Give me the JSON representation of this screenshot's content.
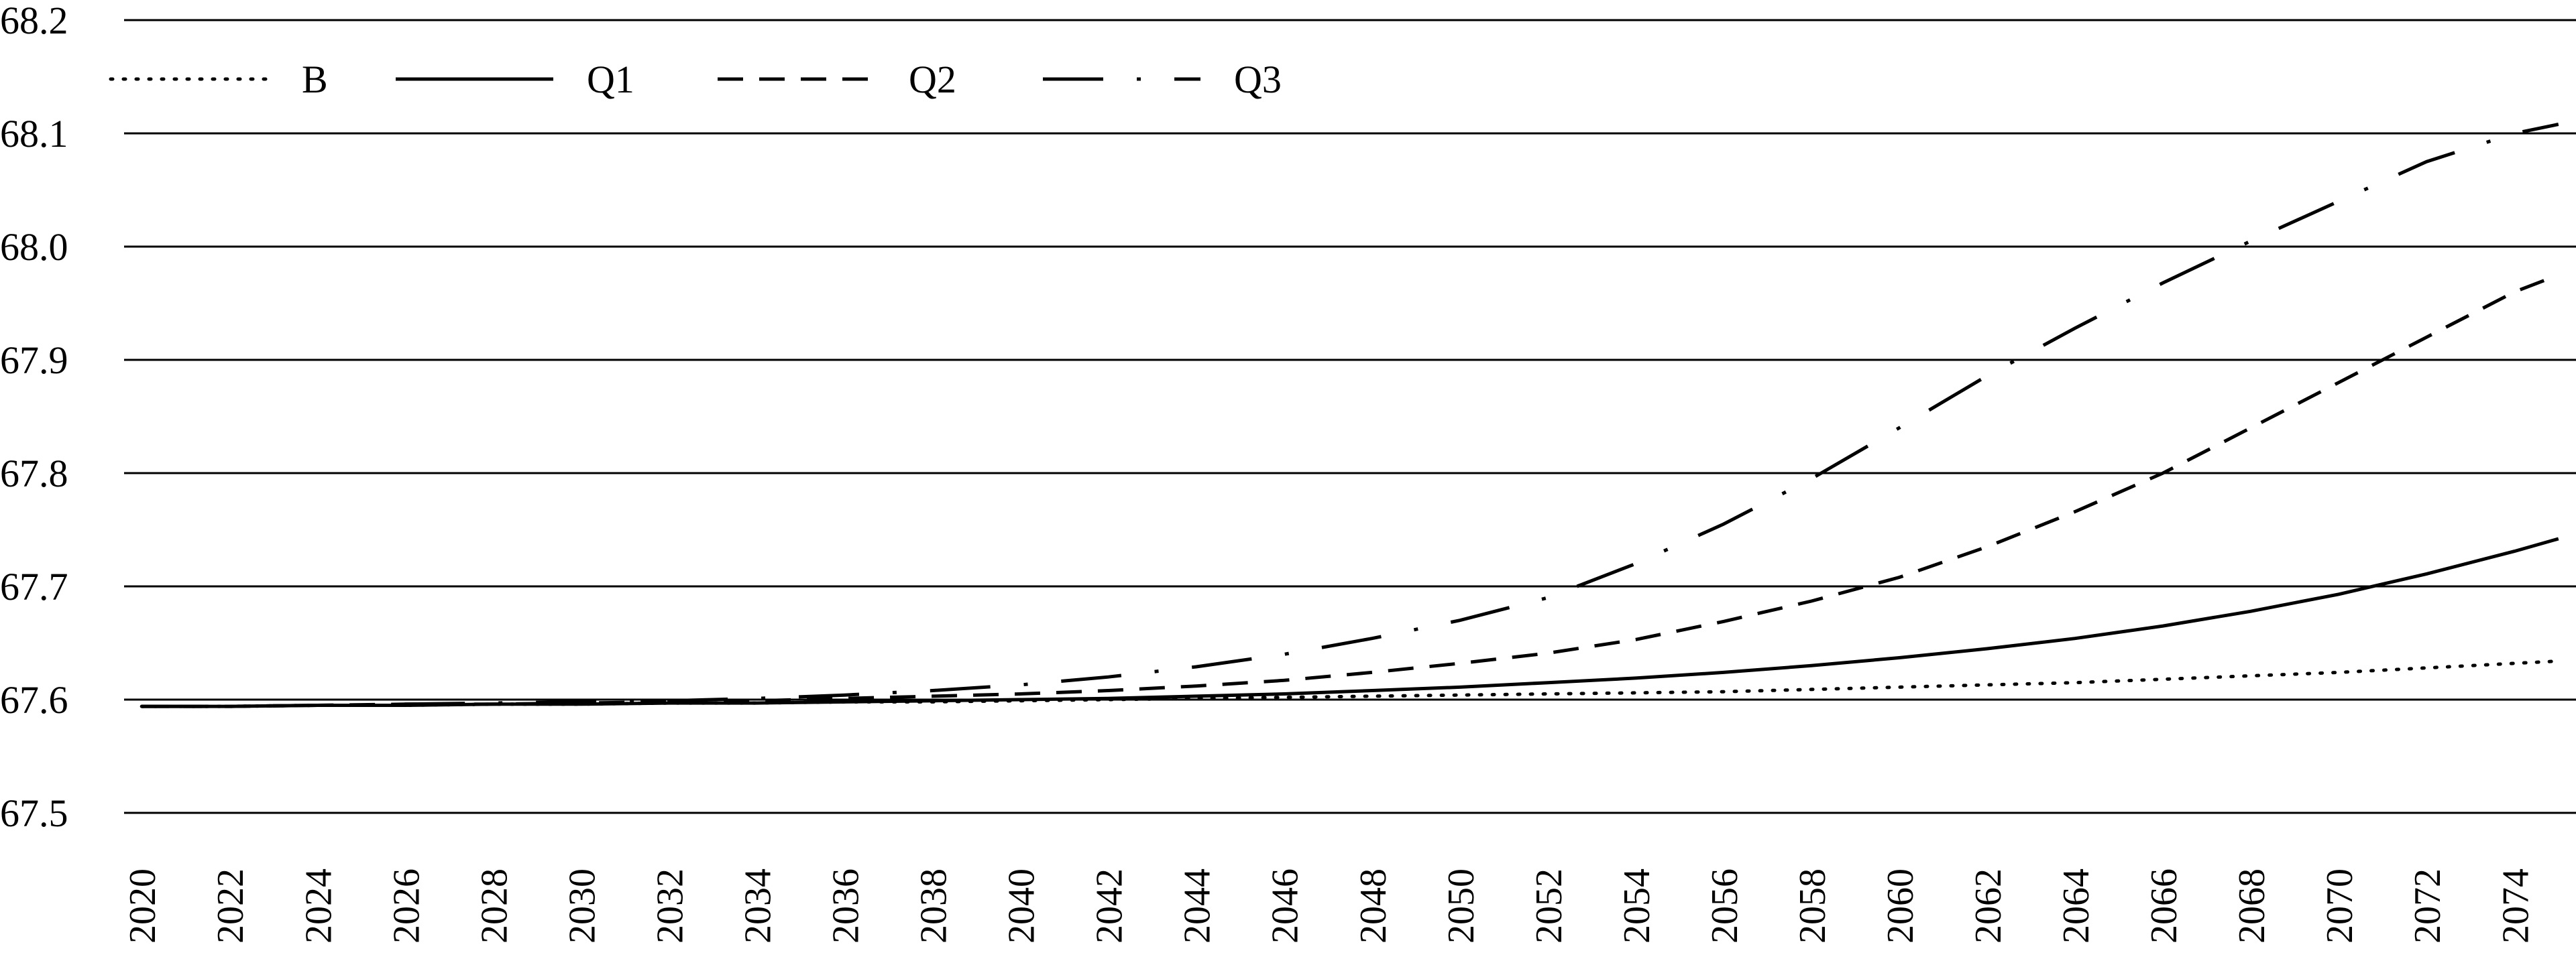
{
  "chart_data": {
    "type": "line",
    "title": "",
    "xlabel": "",
    "ylabel": "",
    "ylim": [
      67.5,
      68.2
    ],
    "yticks": [
      "67.5",
      "67.6",
      "67.7",
      "67.8",
      "67.9",
      "68.0",
      "68.1",
      "68.2"
    ],
    "xtick_labels": [
      "2020",
      "2022",
      "2024",
      "2026",
      "2028",
      "2030",
      "2032",
      "2034",
      "2036",
      "2038",
      "2040",
      "2042",
      "2044",
      "2046",
      "2048",
      "2050",
      "2052",
      "2054",
      "2056",
      "2058",
      "2060",
      "2062",
      "2064",
      "2066",
      "2068",
      "2070",
      "2072",
      "2074"
    ],
    "grid": "horizontal",
    "legend_position": "top-left",
    "x": [
      2020,
      2022,
      2024,
      2026,
      2028,
      2030,
      2032,
      2034,
      2036,
      2038,
      2040,
      2042,
      2044,
      2046,
      2048,
      2050,
      2052,
      2054,
      2056,
      2058,
      2060,
      2062,
      2064,
      2066,
      2068,
      2070,
      2072,
      2074,
      2075
    ],
    "series": [
      {
        "name": "B",
        "style": "dotted",
        "values": [
          67.594,
          67.594,
          67.595,
          67.595,
          67.596,
          67.596,
          67.597,
          67.597,
          67.598,
          67.598,
          67.599,
          67.6,
          67.601,
          67.602,
          67.603,
          67.604,
          67.605,
          67.606,
          67.607,
          67.609,
          67.611,
          67.613,
          67.615,
          67.618,
          67.621,
          67.624,
          67.628,
          67.632,
          67.634
        ]
      },
      {
        "name": "Q1",
        "style": "solid",
        "values": [
          67.594,
          67.594,
          67.595,
          67.595,
          67.596,
          67.596,
          67.597,
          67.597,
          67.598,
          67.599,
          67.6,
          67.601,
          67.603,
          67.605,
          67.608,
          67.611,
          67.615,
          67.619,
          67.624,
          67.63,
          67.637,
          67.645,
          67.654,
          67.665,
          67.678,
          67.693,
          67.711,
          67.731,
          67.742
        ]
      },
      {
        "name": "Q2",
        "style": "dashed",
        "values": [
          67.594,
          67.594,
          67.595,
          67.596,
          67.596,
          67.597,
          67.598,
          67.599,
          67.601,
          67.603,
          67.605,
          67.608,
          67.612,
          67.617,
          67.624,
          67.632,
          67.641,
          67.653,
          67.669,
          67.687,
          67.708,
          67.735,
          67.766,
          67.8,
          67.84,
          67.88,
          67.92,
          67.96,
          67.975
        ]
      },
      {
        "name": "Q3",
        "style": "dash-dot",
        "values": [
          67.594,
          67.594,
          67.595,
          67.596,
          67.597,
          67.598,
          67.599,
          67.601,
          67.604,
          67.608,
          67.613,
          67.62,
          67.629,
          67.64,
          67.654,
          67.67,
          67.69,
          67.72,
          67.755,
          67.795,
          67.84,
          67.886,
          67.928,
          67.968,
          68.005,
          68.04,
          68.075,
          68.1,
          68.108
        ]
      }
    ]
  }
}
